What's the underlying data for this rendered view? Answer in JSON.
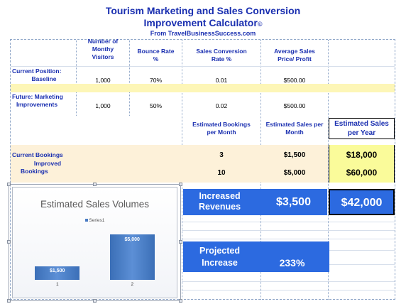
{
  "header": {
    "title_line1": "Tourism Marketing and Sales Conversion",
    "title_line2": "Improvement Calculator",
    "title_mark": "©",
    "source": "From TravelBusinessSuccess.com"
  },
  "columns": {
    "visitors": [
      "Number of",
      "Monthy",
      "Visitors"
    ],
    "bounce": [
      "Bounce Rate",
      "%"
    ],
    "conversion": [
      "Sales Conversion",
      "Rate %"
    ],
    "avg_sales": [
      "Average Sales",
      "Price/ Profit"
    ]
  },
  "rows": {
    "current": {
      "label": [
        "Current Position:",
        "Baseline"
      ],
      "visitors": "1,000",
      "bounce": "70%",
      "conversion": "0.01",
      "avg": "$500.00"
    },
    "future": {
      "label": [
        "Future: Marketing",
        "Improvements"
      ],
      "visitors": "1,000",
      "bounce": "50%",
      "conversion": "0.02",
      "avg": "$500.00"
    }
  },
  "estimates_header": {
    "bookings": [
      "Estimated Bookings",
      "per Month"
    ],
    "sales_month": [
      "Estimated Sales per",
      "Month"
    ],
    "sales_year": [
      "Estimated Sales",
      "per Year"
    ]
  },
  "bookings": {
    "current_label": "Current Bookings",
    "improved_label": [
      "Improved",
      "Bookings"
    ],
    "current_count": "3",
    "current_month": "$1,500",
    "current_year": "$18,000",
    "improved_count": "10",
    "improved_month": "$5,000",
    "improved_year": "$60,000"
  },
  "summary": {
    "increased_label": [
      "Increased",
      "Revenues"
    ],
    "increased_month": "$3,500",
    "increased_year": "$42,000",
    "projected_label": [
      "Projected",
      "Increase"
    ],
    "projected_value": "233%"
  },
  "chart_data": {
    "type": "bar",
    "title": "Estimated Sales Volumes",
    "legend": "Series1",
    "legend_position": "top",
    "categories": [
      "1",
      "2"
    ],
    "series": [
      {
        "name": "Series1",
        "values": [
          1500,
          5000
        ]
      }
    ],
    "data_labels": [
      "$1,500",
      "$5,000"
    ],
    "ylim": [
      0,
      5500
    ],
    "color": "#4a7cc4"
  }
}
